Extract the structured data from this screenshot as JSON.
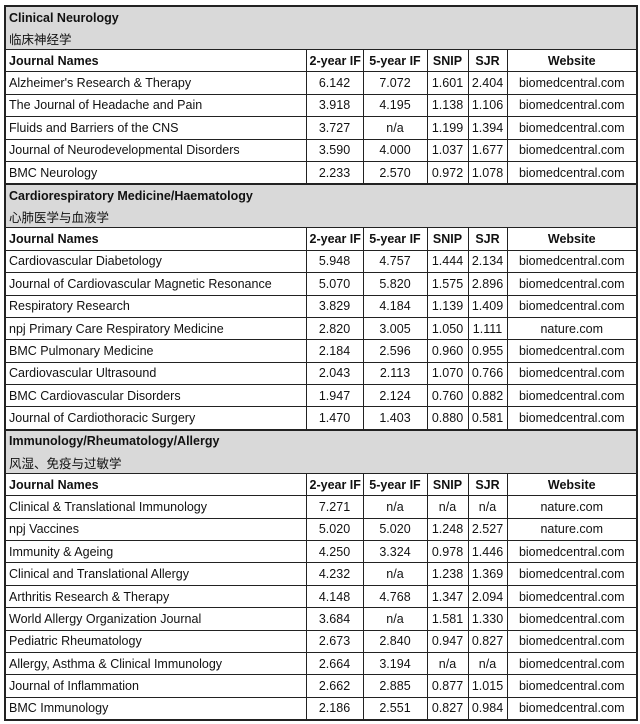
{
  "columns": [
    "Journal Names",
    "2-year IF",
    "5-year IF",
    "SNIP",
    "SJR",
    "Website"
  ],
  "sections": [
    {
      "title": "Clinical Neurology",
      "title_zh": "临床神经学",
      "rows": [
        [
          "Alzheimer's Research & Therapy",
          "6.142",
          "7.072",
          "1.601",
          "2.404",
          "biomedcentral.com"
        ],
        [
          "The Journal of Headache and Pain",
          "3.918",
          "4.195",
          "1.138",
          "1.106",
          "biomedcentral.com"
        ],
        [
          "Fluids and Barriers of the CNS",
          "3.727",
          "n/a",
          "1.199",
          "1.394",
          "biomedcentral.com"
        ],
        [
          "Journal of Neurodevelopmental Disorders",
          "3.590",
          "4.000",
          "1.037",
          "1.677",
          "biomedcentral.com"
        ],
        [
          "BMC Neurology",
          "2.233",
          "2.570",
          "0.972",
          "1.078",
          "biomedcentral.com"
        ]
      ]
    },
    {
      "title": "Cardiorespiratory Medicine/Haematology",
      "title_zh": "心肺医学与血液学",
      "rows": [
        [
          "Cardiovascular Diabetology",
          "5.948",
          "4.757",
          "1.444",
          "2.134",
          "biomedcentral.com"
        ],
        [
          "Journal of Cardiovascular Magnetic Resonance",
          "5.070",
          "5.820",
          "1.575",
          "2.896",
          "biomedcentral.com"
        ],
        [
          "Respiratory Research",
          "3.829",
          "4.184",
          "1.139",
          "1.409",
          "biomedcentral.com"
        ],
        [
          "npj Primary Care Respiratory Medicine",
          "2.820",
          "3.005",
          "1.050",
          "1.111",
          "nature.com"
        ],
        [
          "BMC Pulmonary Medicine",
          "2.184",
          "2.596",
          "0.960",
          "0.955",
          "biomedcentral.com"
        ],
        [
          "Cardiovascular Ultrasound",
          "2.043",
          "2.113",
          "1.070",
          "0.766",
          "biomedcentral.com"
        ],
        [
          "BMC Cardiovascular Disorders",
          "1.947",
          "2.124",
          "0.760",
          "0.882",
          "biomedcentral.com"
        ],
        [
          "Journal of Cardiothoracic Surgery",
          "1.470",
          "1.403",
          "0.880",
          "0.581",
          "biomedcentral.com"
        ]
      ]
    },
    {
      "title": "Immunology/Rheumatology/Allergy",
      "title_zh": "风湿、免疫与过敏学",
      "rows": [
        [
          "Clinical & Translational Immunology",
          "7.271",
          "n/a",
          "n/a",
          "n/a",
          "nature.com"
        ],
        [
          "npj Vaccines",
          "5.020",
          "5.020",
          "1.248",
          "2.527",
          "nature.com"
        ],
        [
          "Immunity & Ageing",
          "4.250",
          "3.324",
          "0.978",
          "1.446",
          "biomedcentral.com"
        ],
        [
          "Clinical and Translational Allergy",
          "4.232",
          "n/a",
          "1.238",
          "1.369",
          "biomedcentral.com"
        ],
        [
          "Arthritis Research & Therapy",
          "4.148",
          "4.768",
          "1.347",
          "2.094",
          "biomedcentral.com"
        ],
        [
          "World Allergy Organization Journal",
          "3.684",
          "n/a",
          "1.581",
          "1.330",
          "biomedcentral.com"
        ],
        [
          "Pediatric Rheumatology",
          "2.673",
          "2.840",
          "0.947",
          "0.827",
          "biomedcentral.com"
        ],
        [
          "Allergy, Asthma & Clinical Immunology",
          "2.664",
          "3.194",
          "n/a",
          "n/a",
          "biomedcentral.com"
        ],
        [
          "Journal of Inflammation",
          "2.662",
          "2.885",
          "0.877",
          "1.015",
          "biomedcentral.com"
        ],
        [
          "BMC Immunology",
          "2.186",
          "2.551",
          "0.827",
          "0.984",
          "biomedcentral.com"
        ]
      ]
    }
  ]
}
